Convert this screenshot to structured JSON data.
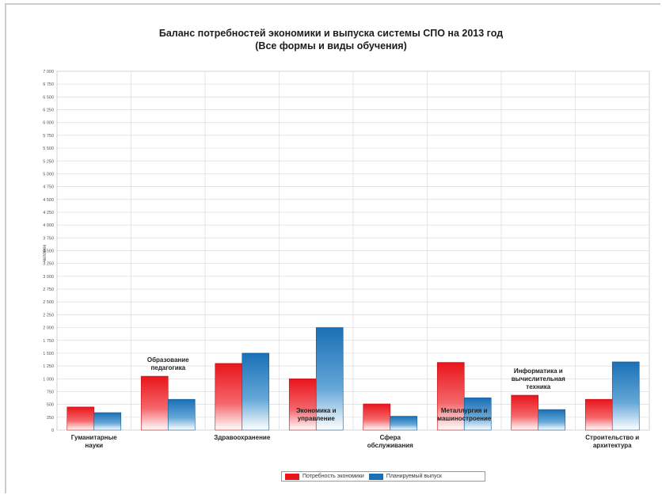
{
  "chart_data": {
    "type": "bar",
    "title": "Баланс потребностей экономики и выпуска системы СПО на 2013 год",
    "subtitle": "(Все формы и виды обучения)",
    "ylabel": "человек",
    "ylim": [
      0,
      7000
    ],
    "grid": true,
    "legend_position": "bottom",
    "categories": [
      [
        "Гуманитарные",
        "науки"
      ],
      [
        "Образование",
        "педагогика"
      ],
      [
        "Здравоохранение"
      ],
      [
        "Экономика и",
        "управление"
      ],
      [
        "Сфера",
        "обслуживания"
      ],
      [
        "Металлургия и",
        "машиностроение"
      ],
      [
        "Информатика и",
        "вычислительная",
        "техника"
      ],
      [
        "Строительство и",
        "архитектура"
      ]
    ],
    "series": [
      {
        "name": "Потребность экономики",
        "color": "#e8151b",
        "values": [
          450,
          1050,
          1300,
          1000,
          510,
          1320,
          680,
          600
        ]
      },
      {
        "name": "Планируемый выпуск",
        "color": "#1a6fb5",
        "values": [
          340,
          600,
          1500,
          2000,
          270,
          630,
          400,
          1330
        ]
      }
    ]
  },
  "legend": {
    "items": [
      "Потребность экономики",
      "Планируемый выпуск"
    ]
  }
}
